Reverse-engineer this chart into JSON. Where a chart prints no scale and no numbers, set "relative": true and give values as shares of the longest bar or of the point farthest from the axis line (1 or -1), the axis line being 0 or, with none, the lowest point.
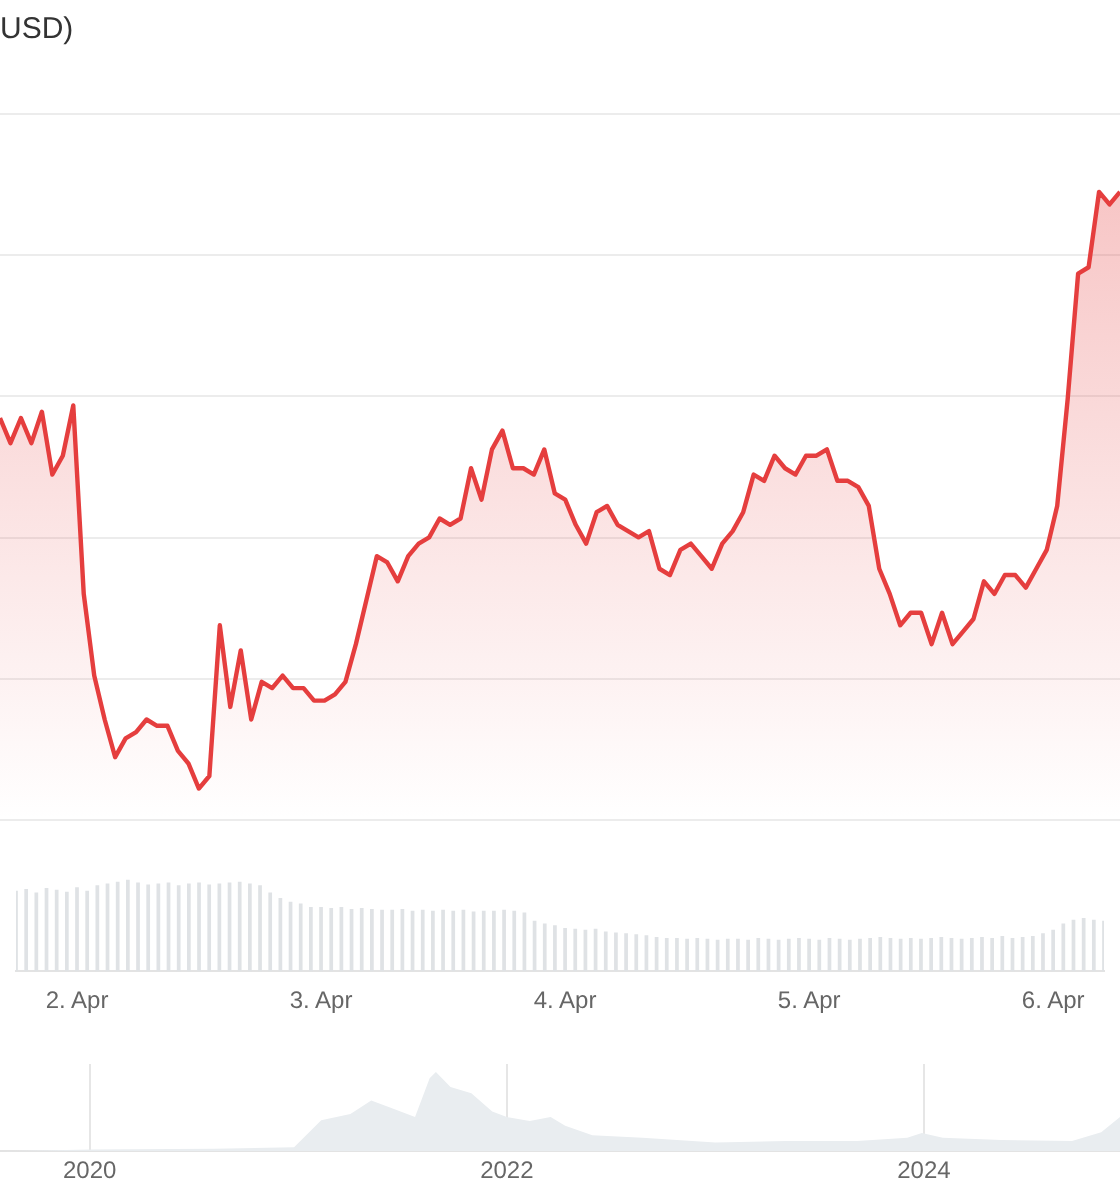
{
  "chart_data": [
    {
      "type": "area",
      "title": "USD)",
      "color": "#e53e3e",
      "relative": true,
      "grid": "y",
      "legend": false,
      "categories": [
        null,
        null,
        null,
        null,
        null,
        null,
        null,
        null,
        null,
        null,
        null,
        null,
        null,
        null,
        null,
        null,
        null,
        null,
        null,
        null,
        null,
        null,
        null,
        null,
        null,
        null,
        null,
        null,
        null,
        null,
        null,
        null,
        null,
        null,
        null,
        null,
        null,
        null,
        null,
        null,
        null,
        null,
        null,
        null,
        null,
        null,
        null,
        null,
        null,
        null,
        null,
        null,
        null,
        null,
        null,
        null,
        null,
        null,
        null,
        null,
        null,
        null,
        null,
        null,
        null,
        null,
        null,
        null,
        null,
        null,
        null,
        null,
        null,
        null,
        null,
        null,
        null,
        null,
        null,
        null,
        null,
        null,
        null,
        null,
        null,
        null,
        null,
        null,
        null,
        null,
        null,
        null,
        null,
        null,
        null,
        null,
        null,
        null,
        null,
        null,
        null,
        null,
        null,
        null,
        null,
        null,
        null,
        null
      ],
      "values": [
        0.64,
        0.6,
        0.64,
        0.6,
        0.65,
        0.55,
        0.58,
        0.66,
        0.36,
        0.23,
        0.16,
        0.1,
        0.13,
        0.14,
        0.16,
        0.15,
        0.15,
        0.11,
        0.09,
        0.05,
        0.07,
        0.31,
        0.18,
        0.27,
        0.16,
        0.22,
        0.21,
        0.23,
        0.21,
        0.21,
        0.19,
        0.19,
        0.2,
        0.22,
        0.28,
        0.35,
        0.42,
        0.41,
        0.38,
        0.42,
        0.44,
        0.45,
        0.48,
        0.47,
        0.48,
        0.56,
        0.51,
        0.59,
        0.62,
        0.56,
        0.56,
        0.55,
        0.59,
        0.52,
        0.51,
        0.47,
        0.44,
        0.49,
        0.5,
        0.47,
        0.46,
        0.45,
        0.46,
        0.4,
        0.39,
        0.43,
        0.44,
        0.42,
        0.4,
        0.44,
        0.46,
        0.49,
        0.55,
        0.54,
        0.58,
        0.56,
        0.55,
        0.58,
        0.58,
        0.59,
        0.54,
        0.54,
        0.53,
        0.5,
        0.4,
        0.36,
        0.31,
        0.33,
        0.33,
        0.28,
        0.33,
        0.28,
        0.3,
        0.32,
        0.38,
        0.36,
        0.39,
        0.39,
        0.37,
        0.4,
        0.43,
        0.5,
        0.67,
        0.87,
        0.88,
        1,
        0.98,
        1
      ]
    },
    {
      "type": "bar",
      "color": "#dfe2e5",
      "relative": true,
      "grid": false,
      "legend": false,
      "categories": [
        null,
        null,
        null,
        null,
        null,
        null,
        "2. Apr",
        null,
        null,
        null,
        null,
        null,
        null,
        null,
        null,
        null,
        null,
        null,
        null,
        null,
        null,
        null,
        null,
        null,
        null,
        null,
        null,
        null,
        null,
        null,
        "3. Apr",
        null,
        null,
        null,
        null,
        null,
        null,
        null,
        null,
        null,
        null,
        null,
        null,
        null,
        null,
        null,
        null,
        null,
        null,
        null,
        null,
        null,
        null,
        null,
        "4. Apr",
        null,
        null,
        null,
        null,
        null,
        null,
        null,
        null,
        null,
        null,
        null,
        null,
        null,
        null,
        null,
        null,
        null,
        null,
        null,
        null,
        null,
        null,
        null,
        "5. Apr",
        null,
        null,
        null,
        null,
        null,
        null,
        null,
        null,
        null,
        null,
        null,
        null,
        null,
        null,
        null,
        null,
        null,
        null,
        null,
        null,
        null,
        null,
        null,
        "6. Apr",
        null,
        null,
        null,
        null,
        null
      ],
      "values": [
        0.88,
        0.9,
        0.86,
        0.91,
        0.89,
        0.87,
        0.92,
        0.88,
        0.94,
        0.96,
        0.98,
        1,
        0.97,
        0.95,
        0.96,
        0.97,
        0.94,
        0.96,
        0.97,
        0.95,
        0.96,
        0.97,
        0.98,
        0.96,
        0.94,
        0.86,
        0.8,
        0.76,
        0.74,
        0.7,
        0.7,
        0.69,
        0.7,
        0.68,
        0.69,
        0.68,
        0.67,
        0.67,
        0.68,
        0.66,
        0.67,
        0.66,
        0.67,
        0.66,
        0.67,
        0.65,
        0.66,
        0.66,
        0.67,
        0.66,
        0.64,
        0.55,
        0.52,
        0.5,
        0.47,
        0.46,
        0.45,
        0.46,
        0.43,
        0.42,
        0.41,
        0.4,
        0.39,
        0.37,
        0.36,
        0.36,
        0.35,
        0.36,
        0.35,
        0.34,
        0.35,
        0.35,
        0.34,
        0.36,
        0.35,
        0.34,
        0.35,
        0.36,
        0.35,
        0.34,
        0.36,
        0.35,
        0.34,
        0.35,
        0.36,
        0.37,
        0.36,
        0.35,
        0.36,
        0.35,
        0.36,
        0.37,
        0.36,
        0.35,
        0.36,
        0.37,
        0.36,
        0.38,
        0.36,
        0.37,
        0.38,
        0.41,
        0.45,
        0.52,
        0.56,
        0.58,
        0.56,
        0.55
      ]
    },
    {
      "type": "area",
      "color": "#e9edf0",
      "relative": true,
      "grid": "x",
      "legend": false,
      "xlim": [
        2019.57,
        2024.94
      ],
      "xticks": [
        2020,
        2022,
        2024
      ],
      "x": [
        2019.57,
        2020.01,
        2020.6,
        2020.98,
        2021.11,
        2021.25,
        2021.35,
        2021.44,
        2021.56,
        2021.63,
        2021.66,
        2021.73,
        2021.83,
        2021.93,
        2022.0,
        2022.11,
        2022.21,
        2022.28,
        2022.41,
        2022.65,
        2023.0,
        2023.34,
        2023.68,
        2023.92,
        2023.99,
        2024.09,
        2024.37,
        2024.71,
        2024.85,
        2024.94
      ],
      "values": [
        0,
        0.02,
        0.03,
        0.05,
        0.39,
        0.47,
        0.64,
        0.55,
        0.43,
        0.92,
        1,
        0.81,
        0.73,
        0.5,
        0.43,
        0.38,
        0.43,
        0.32,
        0.2,
        0.17,
        0.11,
        0.13,
        0.13,
        0.17,
        0.23,
        0.17,
        0.14,
        0.13,
        0.24,
        0.43
      ]
    }
  ]
}
